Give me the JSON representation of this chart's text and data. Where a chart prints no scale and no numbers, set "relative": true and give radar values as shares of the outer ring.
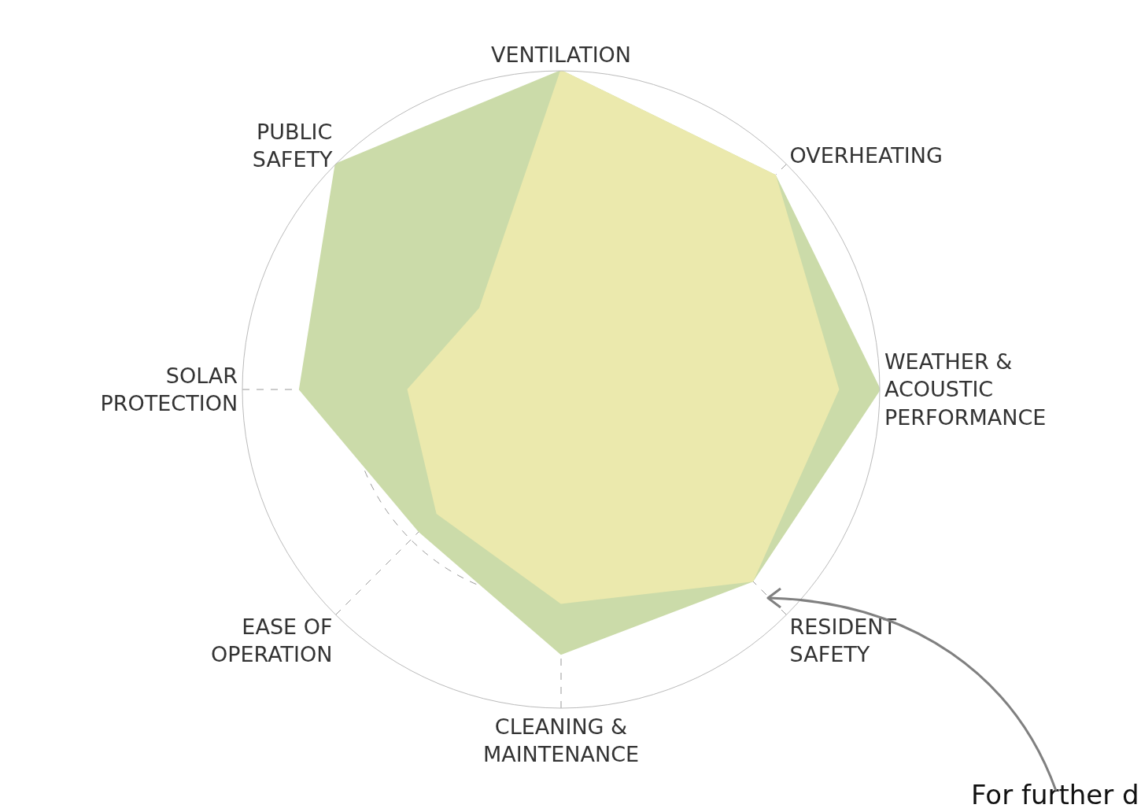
{
  "chart_data": {
    "type": "radar",
    "relative": true,
    "grid": true,
    "categories": [
      "VENTILATION",
      "OVERHEATING",
      "WEATHER &\nACOUSTIC\nPERFORMANCE",
      "RESIDENT\nSAFETY",
      "CLEANING &\nMAINTENANCE",
      "EASE OF\nOPERATION",
      "SOLAR\nPROTECTION",
      "PUBLIC\nSAFETY"
    ],
    "series": [
      {
        "color": "#cbdba9",
        "values": [
          1,
          0.95,
          1,
          0.85,
          0.83,
          0.63,
          0.82,
          1
        ]
      },
      {
        "color": "#ebe9ad",
        "values": [
          1,
          0.95,
          0.87,
          0.85,
          0.67,
          0.55,
          0.48,
          0.36
        ]
      }
    ],
    "annotations": [
      "For further d"
    ]
  }
}
